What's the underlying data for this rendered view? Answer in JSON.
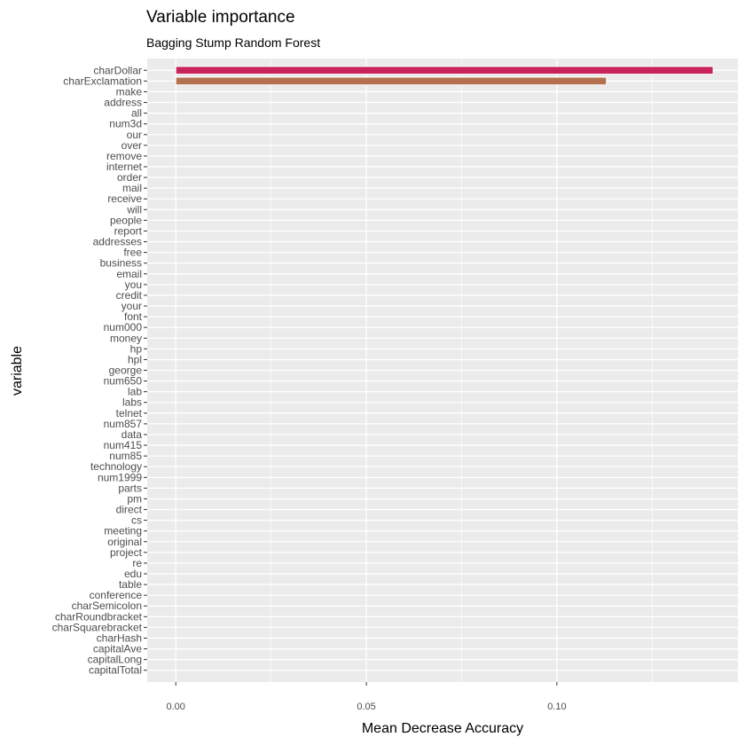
{
  "chart_data": {
    "type": "bar",
    "orientation": "horizontal",
    "title": "Variable importance",
    "subtitle": "Bagging Stump Random Forest",
    "xlabel": "Mean Decrease Accuracy",
    "ylabel": "variable",
    "xlim": [
      -0.0075,
      0.1475
    ],
    "xticks": [
      "0.00",
      "0.05",
      "0.10"
    ],
    "xtick_values": [
      0,
      0.05,
      0.1
    ],
    "grid": true,
    "categories": [
      "charDollar",
      "charExclamation",
      "make",
      "address",
      "all",
      "num3d",
      "our",
      "over",
      "remove",
      "internet",
      "order",
      "mail",
      "receive",
      "will",
      "people",
      "report",
      "addresses",
      "free",
      "business",
      "email",
      "you",
      "credit",
      "your",
      "font",
      "num000",
      "money",
      "hp",
      "hpl",
      "george",
      "num650",
      "lab",
      "labs",
      "telnet",
      "num857",
      "data",
      "num415",
      "num85",
      "technology",
      "num1999",
      "parts",
      "pm",
      "direct",
      "cs",
      "meeting",
      "original",
      "project",
      "re",
      "edu",
      "table",
      "conference",
      "charSemicolon",
      "charRoundbracket",
      "charSquarebracket",
      "charHash",
      "capitalAve",
      "capitalLong",
      "capitalTotal"
    ],
    "values": [
      0.141,
      0.113,
      0,
      0,
      0,
      0,
      0,
      0,
      0,
      0,
      0,
      0,
      0,
      0,
      0,
      0,
      0,
      0,
      0,
      0,
      0,
      0,
      0,
      0,
      0,
      0,
      0,
      0,
      0,
      0,
      0,
      0,
      0,
      0,
      0,
      0,
      0,
      0,
      0,
      0,
      0,
      0,
      0,
      0,
      0,
      0,
      0,
      0,
      0,
      0,
      0,
      0,
      0,
      0,
      0,
      0,
      0
    ],
    "bar_colors": [
      "#c8235a",
      "#b5714f"
    ],
    "panel_background": "#ebebeb",
    "grid_color": "#ffffff"
  }
}
